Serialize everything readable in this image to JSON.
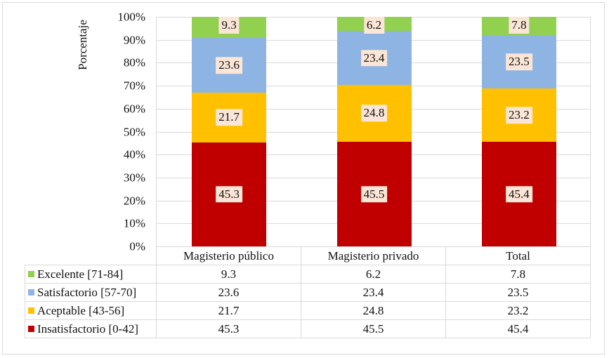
{
  "chart_data": {
    "type": "bar",
    "stacked": true,
    "percent_stacked": true,
    "title": "",
    "xlabel": "",
    "ylabel": "Porcentaje",
    "ylim": [
      0,
      100
    ],
    "yticks": [
      "0%",
      "10%",
      "20%",
      "30%",
      "40%",
      "50%",
      "60%",
      "70%",
      "80%",
      "90%",
      "100%"
    ],
    "grid": true,
    "legend_position": "data-table-left",
    "categories": [
      "Magisterio público",
      "Magisterio privado",
      "Total"
    ],
    "series": [
      {
        "name": "Insatisfactorio [0-42]",
        "color": "#c00000",
        "values": [
          45.3,
          45.5,
          45.4
        ]
      },
      {
        "name": "Aceptable [43-56]",
        "color": "#ffc000",
        "values": [
          21.7,
          24.8,
          23.2
        ]
      },
      {
        "name": "Satisfactorio [57-70]",
        "color": "#8eb4e3",
        "values": [
          23.6,
          23.4,
          23.5
        ]
      },
      {
        "name": "Excelente [71-84]",
        "color": "#92d050",
        "values": [
          9.3,
          6.2,
          7.8
        ]
      }
    ],
    "data_table": {
      "rows_order": [
        "Excelente [71-84]",
        "Satisfactorio [57-70]",
        "Aceptable [43-56]",
        "Insatisfactorio [0-42]"
      ],
      "rows": [
        {
          "label": "Excelente [71-84]",
          "color": "#92d050",
          "values": [
            "9.3",
            "6.2",
            "7.8"
          ]
        },
        {
          "label": "Satisfactorio [57-70]",
          "color": "#8eb4e3",
          "values": [
            "23.6",
            "23.4",
            "23.5"
          ]
        },
        {
          "label": "Aceptable [43-56]",
          "color": "#ffc000",
          "values": [
            "21.7",
            "24.8",
            "23.2"
          ]
        },
        {
          "label": "Insatisfactorio [0-42]",
          "color": "#c00000",
          "values": [
            "45.3",
            "45.5",
            "45.4"
          ]
        }
      ]
    },
    "label_background": "#fbe5d6"
  }
}
